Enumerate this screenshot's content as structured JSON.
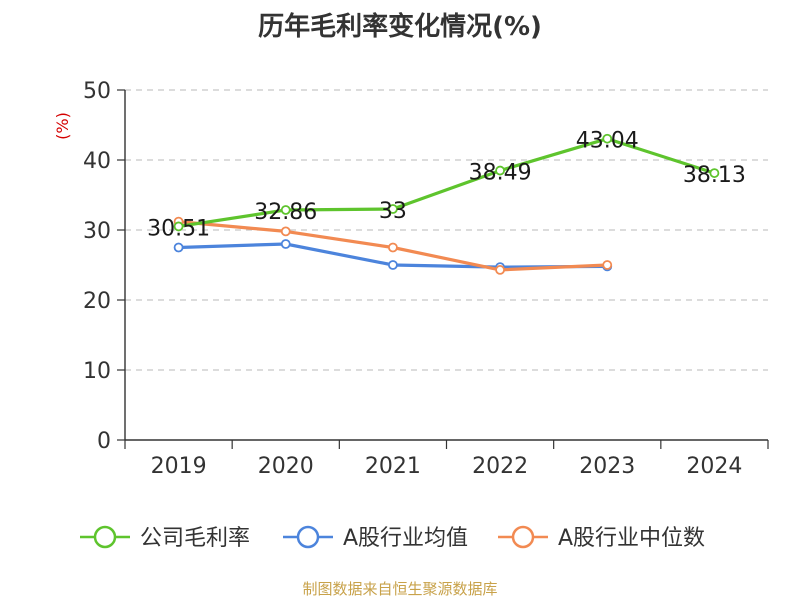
{
  "chart_data": {
    "type": "line",
    "title": "历年毛利率变化情况(%)",
    "ylabel": "(%)",
    "categories": [
      "2019",
      "2020",
      "2021",
      "2022",
      "2023",
      "2024"
    ],
    "yticks": [
      "0",
      "10",
      "20",
      "30",
      "40",
      "50"
    ],
    "ylim": [
      0,
      50
    ],
    "grid": true,
    "legend_position": "bottom",
    "series": [
      {
        "name": "公司毛利率",
        "color": "#5ec42d",
        "values": [
          30.51,
          32.86,
          33,
          38.49,
          43.04,
          38.13
        ],
        "labels": [
          "30.51",
          "32.86",
          "33",
          "38.49",
          "43.04",
          "38.13"
        ]
      },
      {
        "name": "A股行业均值",
        "color": "#4c84dc",
        "values": [
          27.5,
          28.0,
          25.0,
          24.7,
          24.8,
          null
        ]
      },
      {
        "name": "A股行业中位数",
        "color": "#f28a52",
        "values": [
          31.2,
          29.8,
          27.5,
          24.3,
          25.0,
          null
        ]
      }
    ]
  },
  "source": "制图数据来自恒生聚源数据库"
}
